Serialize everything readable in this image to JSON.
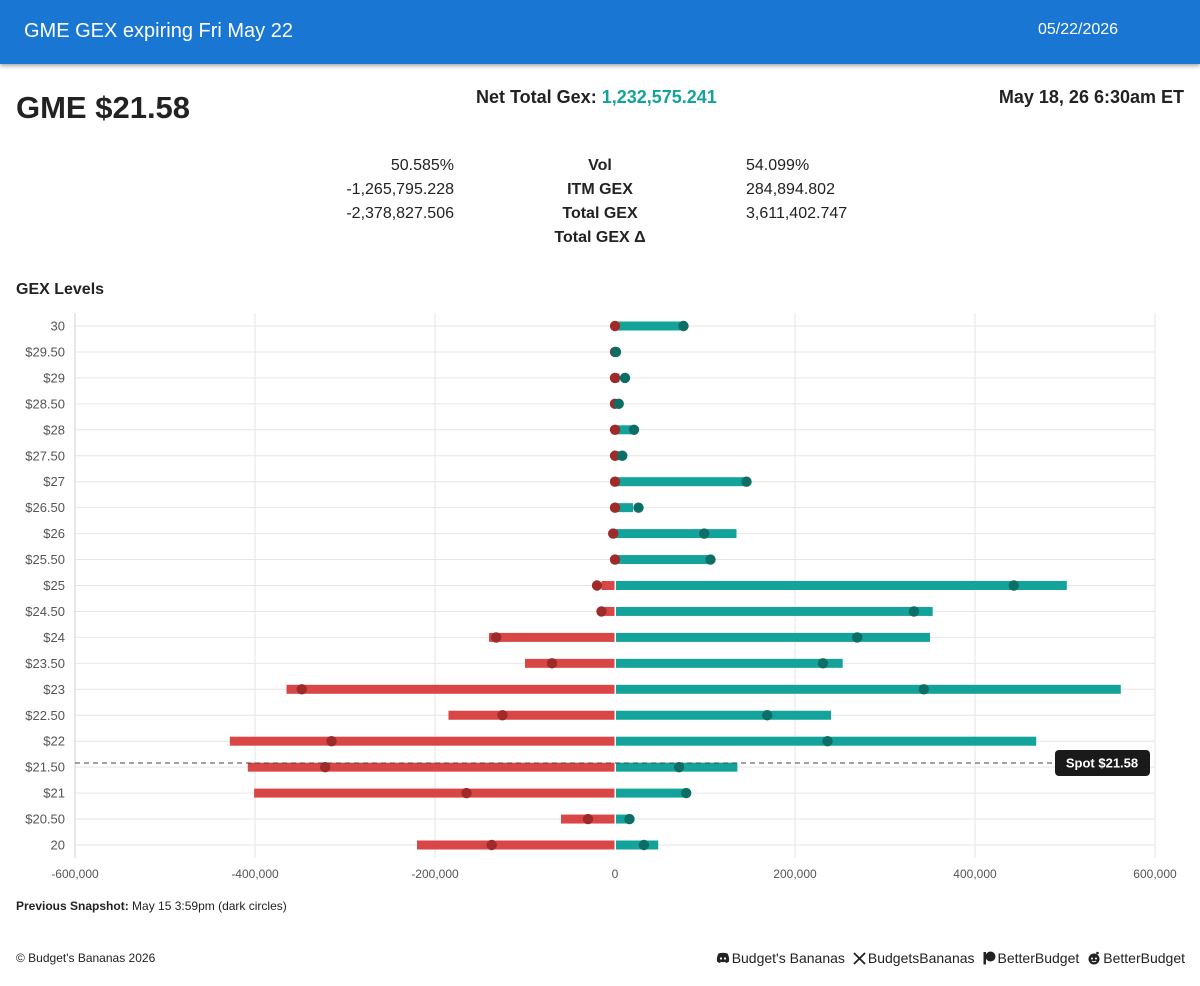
{
  "appbar": {
    "title": "GME GEX expiring Fri May 22",
    "date": "05/22/2026"
  },
  "header": {
    "ticker_price": "GME $21.58",
    "net_total_label": "Net Total Gex:",
    "net_total_value": "1,232,575.241",
    "timestamp": "May 18, 26 6:30am ET"
  },
  "stats": [
    {
      "left": "50.585%",
      "label": "Vol",
      "right": "54.099%"
    },
    {
      "left": "-1,265,795.228",
      "label": "ITM GEX",
      "right": "284,894.802"
    },
    {
      "left": "-2,378,827.506",
      "label": "Total GEX",
      "right": "3,611,402.747"
    },
    {
      "left": "",
      "label": "Total GEX Δ",
      "right": ""
    }
  ],
  "section_title": "GEX Levels",
  "chart_data": {
    "type": "bar",
    "orientation": "horizontal",
    "categories": [
      "30",
      "$29.50",
      "$29",
      "$28.50",
      "$28",
      "$27.50",
      "$27",
      "$26.50",
      "$26",
      "$25.50",
      "$25",
      "$24.50",
      "$24",
      "$23.50",
      "$23",
      "$22.50",
      "$22",
      "$21.50",
      "$21",
      "$20.50",
      "20"
    ],
    "strikes": [
      30,
      29.5,
      29,
      28.5,
      28,
      27.5,
      27,
      26.5,
      26,
      25.5,
      25,
      24.5,
      24,
      23.5,
      23,
      22.5,
      22,
      21.5,
      21,
      20.5,
      20
    ],
    "series": [
      {
        "values": [
          0,
          0,
          0,
          0,
          0,
          0,
          0,
          0,
          0,
          0,
          -15000,
          -12000,
          -140000,
          -100000,
          -365000,
          -185000,
          -428000,
          -408000,
          -401000,
          -60000,
          -220000
        ]
      },
      {
        "values": [
          75000,
          0,
          5000,
          3000,
          20000,
          5000,
          145000,
          20000,
          135000,
          105000,
          502000,
          353000,
          350000,
          253000,
          562000,
          240000,
          468000,
          136000,
          78000,
          15000,
          48000
        ]
      }
    ],
    "previous_snapshot": {
      "negative": [
        0,
        0,
        0,
        0,
        0,
        0,
        0,
        0,
        -2000,
        0,
        -20000,
        -15000,
        -132000,
        -70000,
        -348000,
        -125000,
        -315000,
        -322000,
        -165000,
        -30000,
        -137000
      ],
      "positive": [
        75000,
        0,
        10000,
        3000,
        20000,
        7000,
        145000,
        25000,
        98000,
        105000,
        442000,
        331000,
        268000,
        230000,
        342000,
        168000,
        235000,
        70000,
        78000,
        15000,
        31000
      ]
    },
    "spot": 21.58,
    "spot_label": "Spot $21.58",
    "xlim": [
      -600000,
      600000
    ],
    "xticks": [
      -600000,
      -400000,
      -200000,
      0,
      200000,
      400000,
      600000
    ],
    "xtick_labels": [
      "-600,000",
      "-400,000",
      "-200,000",
      "0",
      "200,000",
      "400,000",
      "600,000"
    ],
    "grid": true,
    "colors": {
      "negative": "#d94646",
      "positive": "#14a39a",
      "negative_dot": "#9e2a2a",
      "positive_dot": "#0d6e66"
    }
  },
  "snapshot_note": {
    "label": "Previous Snapshot:",
    "text": "May 15 3:59pm (dark circles)"
  },
  "footer": {
    "copyright": "© Budget's Bananas 2026",
    "links": [
      {
        "icon": "discord-icon",
        "label": "Budget's Bananas"
      },
      {
        "icon": "x-icon",
        "label": "BudgetsBananas"
      },
      {
        "icon": "patreon-icon",
        "label": "BetterBudget"
      },
      {
        "icon": "reddit-icon",
        "label": "BetterBudget"
      }
    ]
  }
}
